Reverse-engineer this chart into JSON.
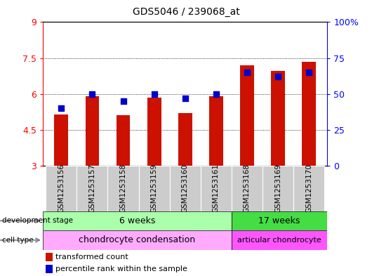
{
  "title": "GDS5046 / 239068_at",
  "samples": [
    "GSM1253156",
    "GSM1253157",
    "GSM1253158",
    "GSM1253159",
    "GSM1253160",
    "GSM1253161",
    "GSM1253168",
    "GSM1253169",
    "GSM1253170"
  ],
  "transformed_count": [
    5.15,
    5.9,
    5.1,
    5.85,
    5.2,
    5.9,
    7.2,
    6.95,
    7.35
  ],
  "percentile_rank": [
    40,
    50,
    45,
    50,
    47,
    50,
    65,
    62,
    65
  ],
  "ymin": 3,
  "ymax": 9,
  "yticks": [
    3,
    4.5,
    6,
    7.5,
    9
  ],
  "ytick_labels_left": [
    "3",
    "4.5",
    "6",
    "7.5",
    "9"
  ],
  "ytick_labels_right": [
    "0",
    "25",
    "50",
    "75",
    "100%"
  ],
  "bar_color": "#cc1100",
  "dot_color": "#0000cc",
  "xlabel_bg": "#cccccc",
  "dev_stage_6w_color": "#aaffaa",
  "dev_stage_17w_color": "#44dd44",
  "cell_type_1_color": "#ffaaff",
  "cell_type_2_color": "#ff55ff",
  "dev_stage_label": "development stage",
  "cell_type_label": "cell type",
  "dev_stage_6w_text": "6 weeks",
  "dev_stage_17w_text": "17 weeks",
  "cell_type_1_text": "chondrocyte condensation",
  "cell_type_2_text": "articular chondrocyte",
  "legend_bar_label": "transformed count",
  "legend_dot_label": "percentile rank within the sample",
  "split_index": 6,
  "bar_width": 0.45,
  "dot_size": 35
}
